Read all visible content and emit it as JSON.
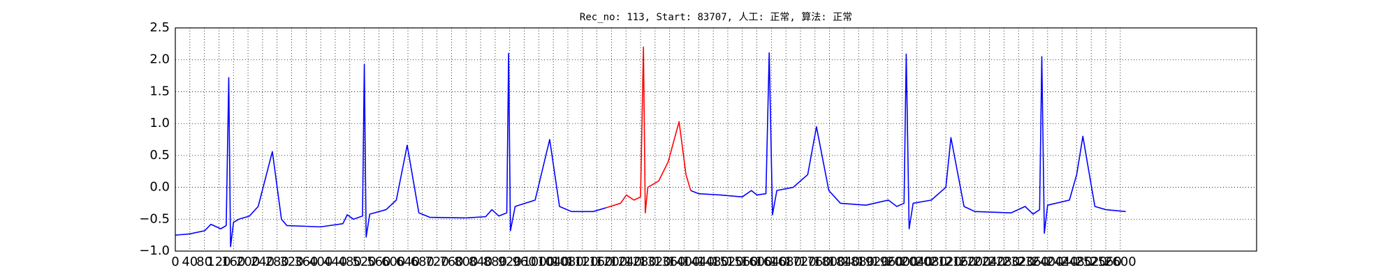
{
  "chart_data": {
    "type": "line",
    "title": "Rec_no: 113, Start: 83707, 人工: 正常, 算法: 正常",
    "x": [
      0,
      40,
      81,
      98,
      125,
      140,
      147,
      152,
      160,
      175,
      204,
      228,
      267,
      292,
      307,
      400,
      461,
      473,
      490,
      515,
      520,
      525,
      535,
      580,
      608,
      638,
      670,
      700,
      800,
      854,
      871,
      890,
      912,
      917,
      922,
      935,
      990,
      1030,
      1057,
      1090,
      1150,
      1185,
      1225,
      1241,
      1262,
      1280,
      1288,
      1293,
      1300,
      1330,
      1356,
      1386,
      1405,
      1418,
      1440,
      1500,
      1560,
      1585,
      1600,
      1625,
      1634,
      1643,
      1655,
      1700,
      1740,
      1764,
      1798,
      1830,
      1900,
      1962,
      1985,
      2005,
      2011,
      2019,
      2030,
      2080,
      2120,
      2134,
      2170,
      2200,
      2300,
      2338,
      2360,
      2378,
      2384,
      2391,
      2400,
      2460,
      2480,
      2497,
      2530,
      2560,
      2615
    ],
    "series": [
      {
        "color": "#0000ff",
        "values": [
          -0.75,
          -0.73,
          -0.68,
          -0.58,
          -0.65,
          -0.6,
          1.72,
          -0.93,
          -0.55,
          -0.5,
          -0.45,
          -0.3,
          0.56,
          -0.5,
          -0.6,
          -0.62,
          -0.57,
          -0.43,
          -0.5,
          -0.45,
          1.93,
          -0.78,
          -0.42,
          -0.35,
          -0.2,
          0.66,
          -0.4,
          -0.47,
          -0.48,
          -0.46,
          -0.35,
          -0.45,
          -0.4,
          2.1,
          -0.68,
          -0.3,
          -0.2,
          0.75,
          -0.3,
          -0.38,
          -0.38,
          -0.32,
          null,
          null,
          null,
          null,
          null,
          null,
          null,
          null,
          null,
          null,
          null,
          -0.05,
          -0.1,
          -0.12,
          -0.15,
          -0.05,
          -0.12,
          -0.1,
          2.11,
          -0.43,
          -0.05,
          0.0,
          0.2,
          0.95,
          -0.05,
          -0.25,
          -0.28,
          -0.2,
          -0.3,
          -0.25,
          2.09,
          -0.65,
          -0.25,
          -0.2,
          0.0,
          0.78,
          -0.3,
          -0.38,
          -0.4,
          -0.3,
          -0.42,
          -0.35,
          2.05,
          -0.72,
          -0.28,
          -0.2,
          0.2,
          0.8,
          -0.3,
          -0.35,
          -0.38
        ]
      },
      {
        "color": "#ff0000",
        "values": [
          null,
          null,
          null,
          null,
          null,
          null,
          null,
          null,
          null,
          null,
          null,
          null,
          null,
          null,
          null,
          null,
          null,
          null,
          null,
          null,
          null,
          null,
          null,
          null,
          null,
          null,
          null,
          null,
          null,
          null,
          null,
          null,
          null,
          null,
          null,
          null,
          null,
          null,
          null,
          null,
          null,
          -0.32,
          -0.25,
          -0.12,
          -0.2,
          -0.15,
          2.2,
          -0.4,
          0.0,
          0.1,
          0.4,
          1.03,
          0.2,
          -0.05,
          null,
          null,
          null,
          null,
          null,
          null,
          null,
          null,
          null,
          null,
          null,
          null,
          null,
          null,
          null,
          null,
          null,
          null,
          null,
          null,
          null,
          null,
          null,
          null,
          null,
          null,
          null,
          null,
          null,
          null,
          null,
          null,
          null,
          null,
          null,
          null,
          null,
          null,
          null
        ]
      }
    ],
    "xlim": [
      0,
      2975
    ],
    "xticks": [
      0,
      40,
      80,
      120,
      160,
      200,
      240,
      280,
      320,
      360,
      400,
      440,
      480,
      520,
      560,
      600,
      640,
      680,
      720,
      760,
      800,
      840,
      880,
      920,
      960,
      1000,
      1040,
      1080,
      1120,
      1160,
      1200,
      1240,
      1280,
      1320,
      1360,
      1400,
      1440,
      1480,
      1520,
      1560,
      1600,
      1640,
      1680,
      1720,
      1760,
      1800,
      1840,
      1880,
      1920,
      1960,
      2000,
      2040,
      2080,
      2120,
      2160,
      2200,
      2240,
      2280,
      2320,
      2360,
      2400,
      2440,
      2480,
      2520,
      2560,
      2600
    ],
    "ylim": [
      -1.0,
      2.5
    ],
    "yticks": [
      {
        "value": -1.0,
        "label": "−1.0"
      },
      {
        "value": -0.5,
        "label": "−0.5"
      },
      {
        "value": 0.0,
        "label": "0.0"
      },
      {
        "value": 0.5,
        "label": "0.5"
      },
      {
        "value": 1.0,
        "label": "1.0"
      },
      {
        "value": 1.5,
        "label": "1.5"
      },
      {
        "value": 2.0,
        "label": "2.0"
      },
      {
        "value": 2.5,
        "label": "2.5"
      }
    ],
    "grid": true
  }
}
